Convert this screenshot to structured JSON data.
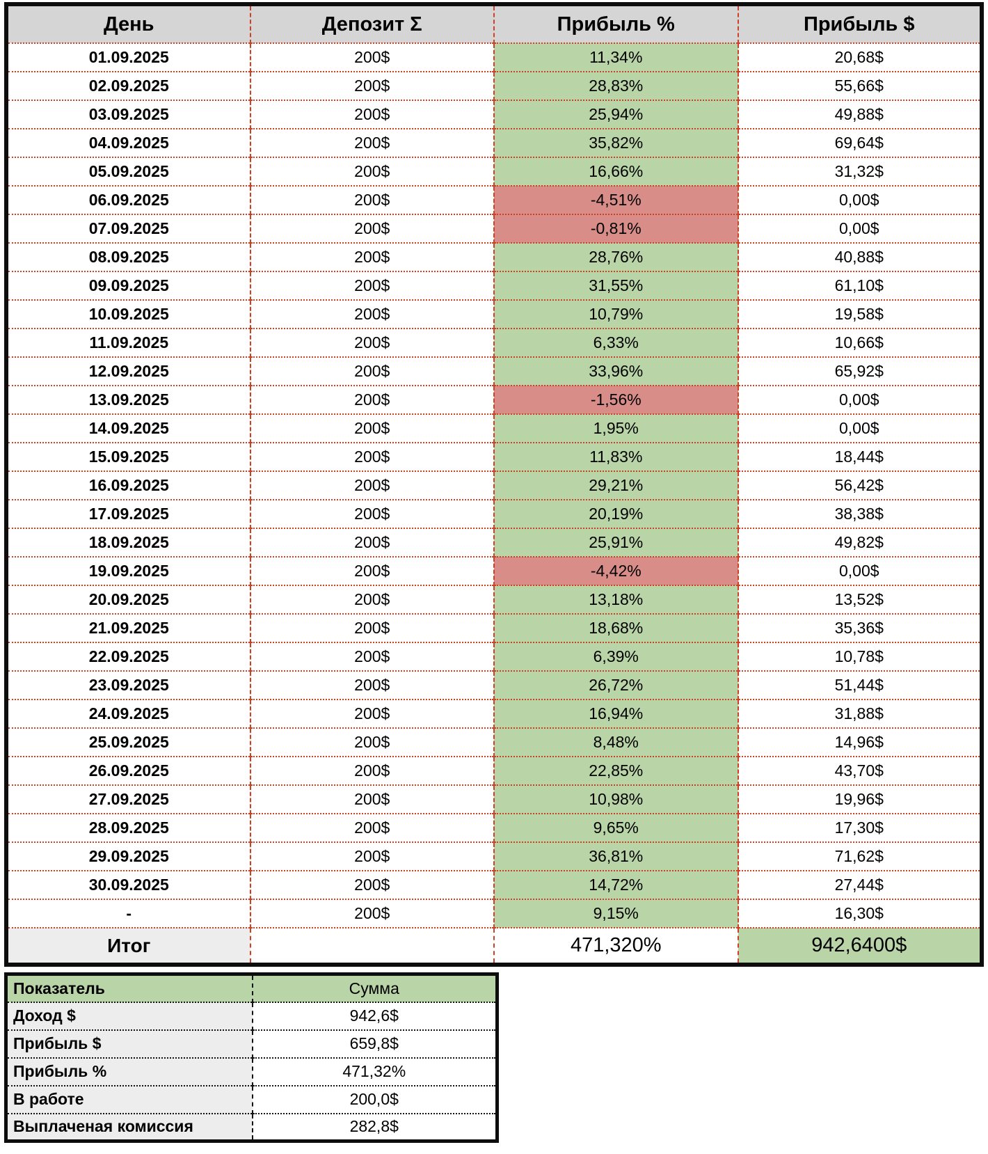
{
  "colors": {
    "positive_bg": "#b9d4a6",
    "negative_bg": "#d98d88",
    "header_bg": "#d5d5d5",
    "label_bg": "#ededed",
    "grid_border": "#cc4125",
    "frame_border": "#0d0d0d"
  },
  "table": {
    "headers": [
      "День",
      "Депозит Σ",
      "Прибыль %",
      "Прибыль $"
    ],
    "rows": [
      {
        "day": "01.09.2025",
        "deposit": "200$",
        "profit_pct": "11,34%",
        "profit_usd": "20,68$",
        "negative": false
      },
      {
        "day": "02.09.2025",
        "deposit": "200$",
        "profit_pct": "28,83%",
        "profit_usd": "55,66$",
        "negative": false
      },
      {
        "day": "03.09.2025",
        "deposit": "200$",
        "profit_pct": "25,94%",
        "profit_usd": "49,88$",
        "negative": false
      },
      {
        "day": "04.09.2025",
        "deposit": "200$",
        "profit_pct": "35,82%",
        "profit_usd": "69,64$",
        "negative": false
      },
      {
        "day": "05.09.2025",
        "deposit": "200$",
        "profit_pct": "16,66%",
        "profit_usd": "31,32$",
        "negative": false
      },
      {
        "day": "06.09.2025",
        "deposit": "200$",
        "profit_pct": "-4,51%",
        "profit_usd": "0,00$",
        "negative": true
      },
      {
        "day": "07.09.2025",
        "deposit": "200$",
        "profit_pct": "-0,81%",
        "profit_usd": "0,00$",
        "negative": true
      },
      {
        "day": "08.09.2025",
        "deposit": "200$",
        "profit_pct": "28,76%",
        "profit_usd": "40,88$",
        "negative": false
      },
      {
        "day": "09.09.2025",
        "deposit": "200$",
        "profit_pct": "31,55%",
        "profit_usd": "61,10$",
        "negative": false
      },
      {
        "day": "10.09.2025",
        "deposit": "200$",
        "profit_pct": "10,79%",
        "profit_usd": "19,58$",
        "negative": false
      },
      {
        "day": "11.09.2025",
        "deposit": "200$",
        "profit_pct": "6,33%",
        "profit_usd": "10,66$",
        "negative": false
      },
      {
        "day": "12.09.2025",
        "deposit": "200$",
        "profit_pct": "33,96%",
        "profit_usd": "65,92$",
        "negative": false
      },
      {
        "day": "13.09.2025",
        "deposit": "200$",
        "profit_pct": "-1,56%",
        "profit_usd": "0,00$",
        "negative": true
      },
      {
        "day": "14.09.2025",
        "deposit": "200$",
        "profit_pct": "1,95%",
        "profit_usd": "0,00$",
        "negative": false
      },
      {
        "day": "15.09.2025",
        "deposit": "200$",
        "profit_pct": "11,83%",
        "profit_usd": "18,44$",
        "negative": false
      },
      {
        "day": "16.09.2025",
        "deposit": "200$",
        "profit_pct": "29,21%",
        "profit_usd": "56,42$",
        "negative": false
      },
      {
        "day": "17.09.2025",
        "deposit": "200$",
        "profit_pct": "20,19%",
        "profit_usd": "38,38$",
        "negative": false
      },
      {
        "day": "18.09.2025",
        "deposit": "200$",
        "profit_pct": "25,91%",
        "profit_usd": "49,82$",
        "negative": false
      },
      {
        "day": "19.09.2025",
        "deposit": "200$",
        "profit_pct": "-4,42%",
        "profit_usd": "0,00$",
        "negative": true
      },
      {
        "day": "20.09.2025",
        "deposit": "200$",
        "profit_pct": "13,18%",
        "profit_usd": "13,52$",
        "negative": false
      },
      {
        "day": "21.09.2025",
        "deposit": "200$",
        "profit_pct": "18,68%",
        "profit_usd": "35,36$",
        "negative": false
      },
      {
        "day": "22.09.2025",
        "deposit": "200$",
        "profit_pct": "6,39%",
        "profit_usd": "10,78$",
        "negative": false
      },
      {
        "day": "23.09.2025",
        "deposit": "200$",
        "profit_pct": "26,72%",
        "profit_usd": "51,44$",
        "negative": false
      },
      {
        "day": "24.09.2025",
        "deposit": "200$",
        "profit_pct": "16,94%",
        "profit_usd": "31,88$",
        "negative": false
      },
      {
        "day": "25.09.2025",
        "deposit": "200$",
        "profit_pct": "8,48%",
        "profit_usd": "14,96$",
        "negative": false
      },
      {
        "day": "26.09.2025",
        "deposit": "200$",
        "profit_pct": "22,85%",
        "profit_usd": "43,70$",
        "negative": false
      },
      {
        "day": "27.09.2025",
        "deposit": "200$",
        "profit_pct": "10,98%",
        "profit_usd": "19,96$",
        "negative": false
      },
      {
        "day": "28.09.2025",
        "deposit": "200$",
        "profit_pct": "9,65%",
        "profit_usd": "17,30$",
        "negative": false
      },
      {
        "day": "29.09.2025",
        "deposit": "200$",
        "profit_pct": "36,81%",
        "profit_usd": "71,62$",
        "negative": false
      },
      {
        "day": "30.09.2025",
        "deposit": "200$",
        "profit_pct": "14,72%",
        "profit_usd": "27,44$",
        "negative": false
      },
      {
        "day": "-",
        "deposit": "200$",
        "profit_pct": "9,15%",
        "profit_usd": "16,30$",
        "negative": false
      }
    ],
    "total": {
      "label": "Итог",
      "deposit": "",
      "profit_pct": "471,320%",
      "profit_usd": "942,6400$"
    }
  },
  "summary": {
    "headers": [
      "Показатель",
      "Сумма"
    ],
    "rows": [
      {
        "label": "Доход $",
        "value": "942,6$"
      },
      {
        "label": "Прибыль $",
        "value": "659,8$"
      },
      {
        "label": "Прибыль %",
        "value": "471,32%"
      },
      {
        "label": "В работе",
        "value": "200,0$"
      },
      {
        "label": "Выплаченая комиссия",
        "value": "282,8$"
      }
    ]
  }
}
